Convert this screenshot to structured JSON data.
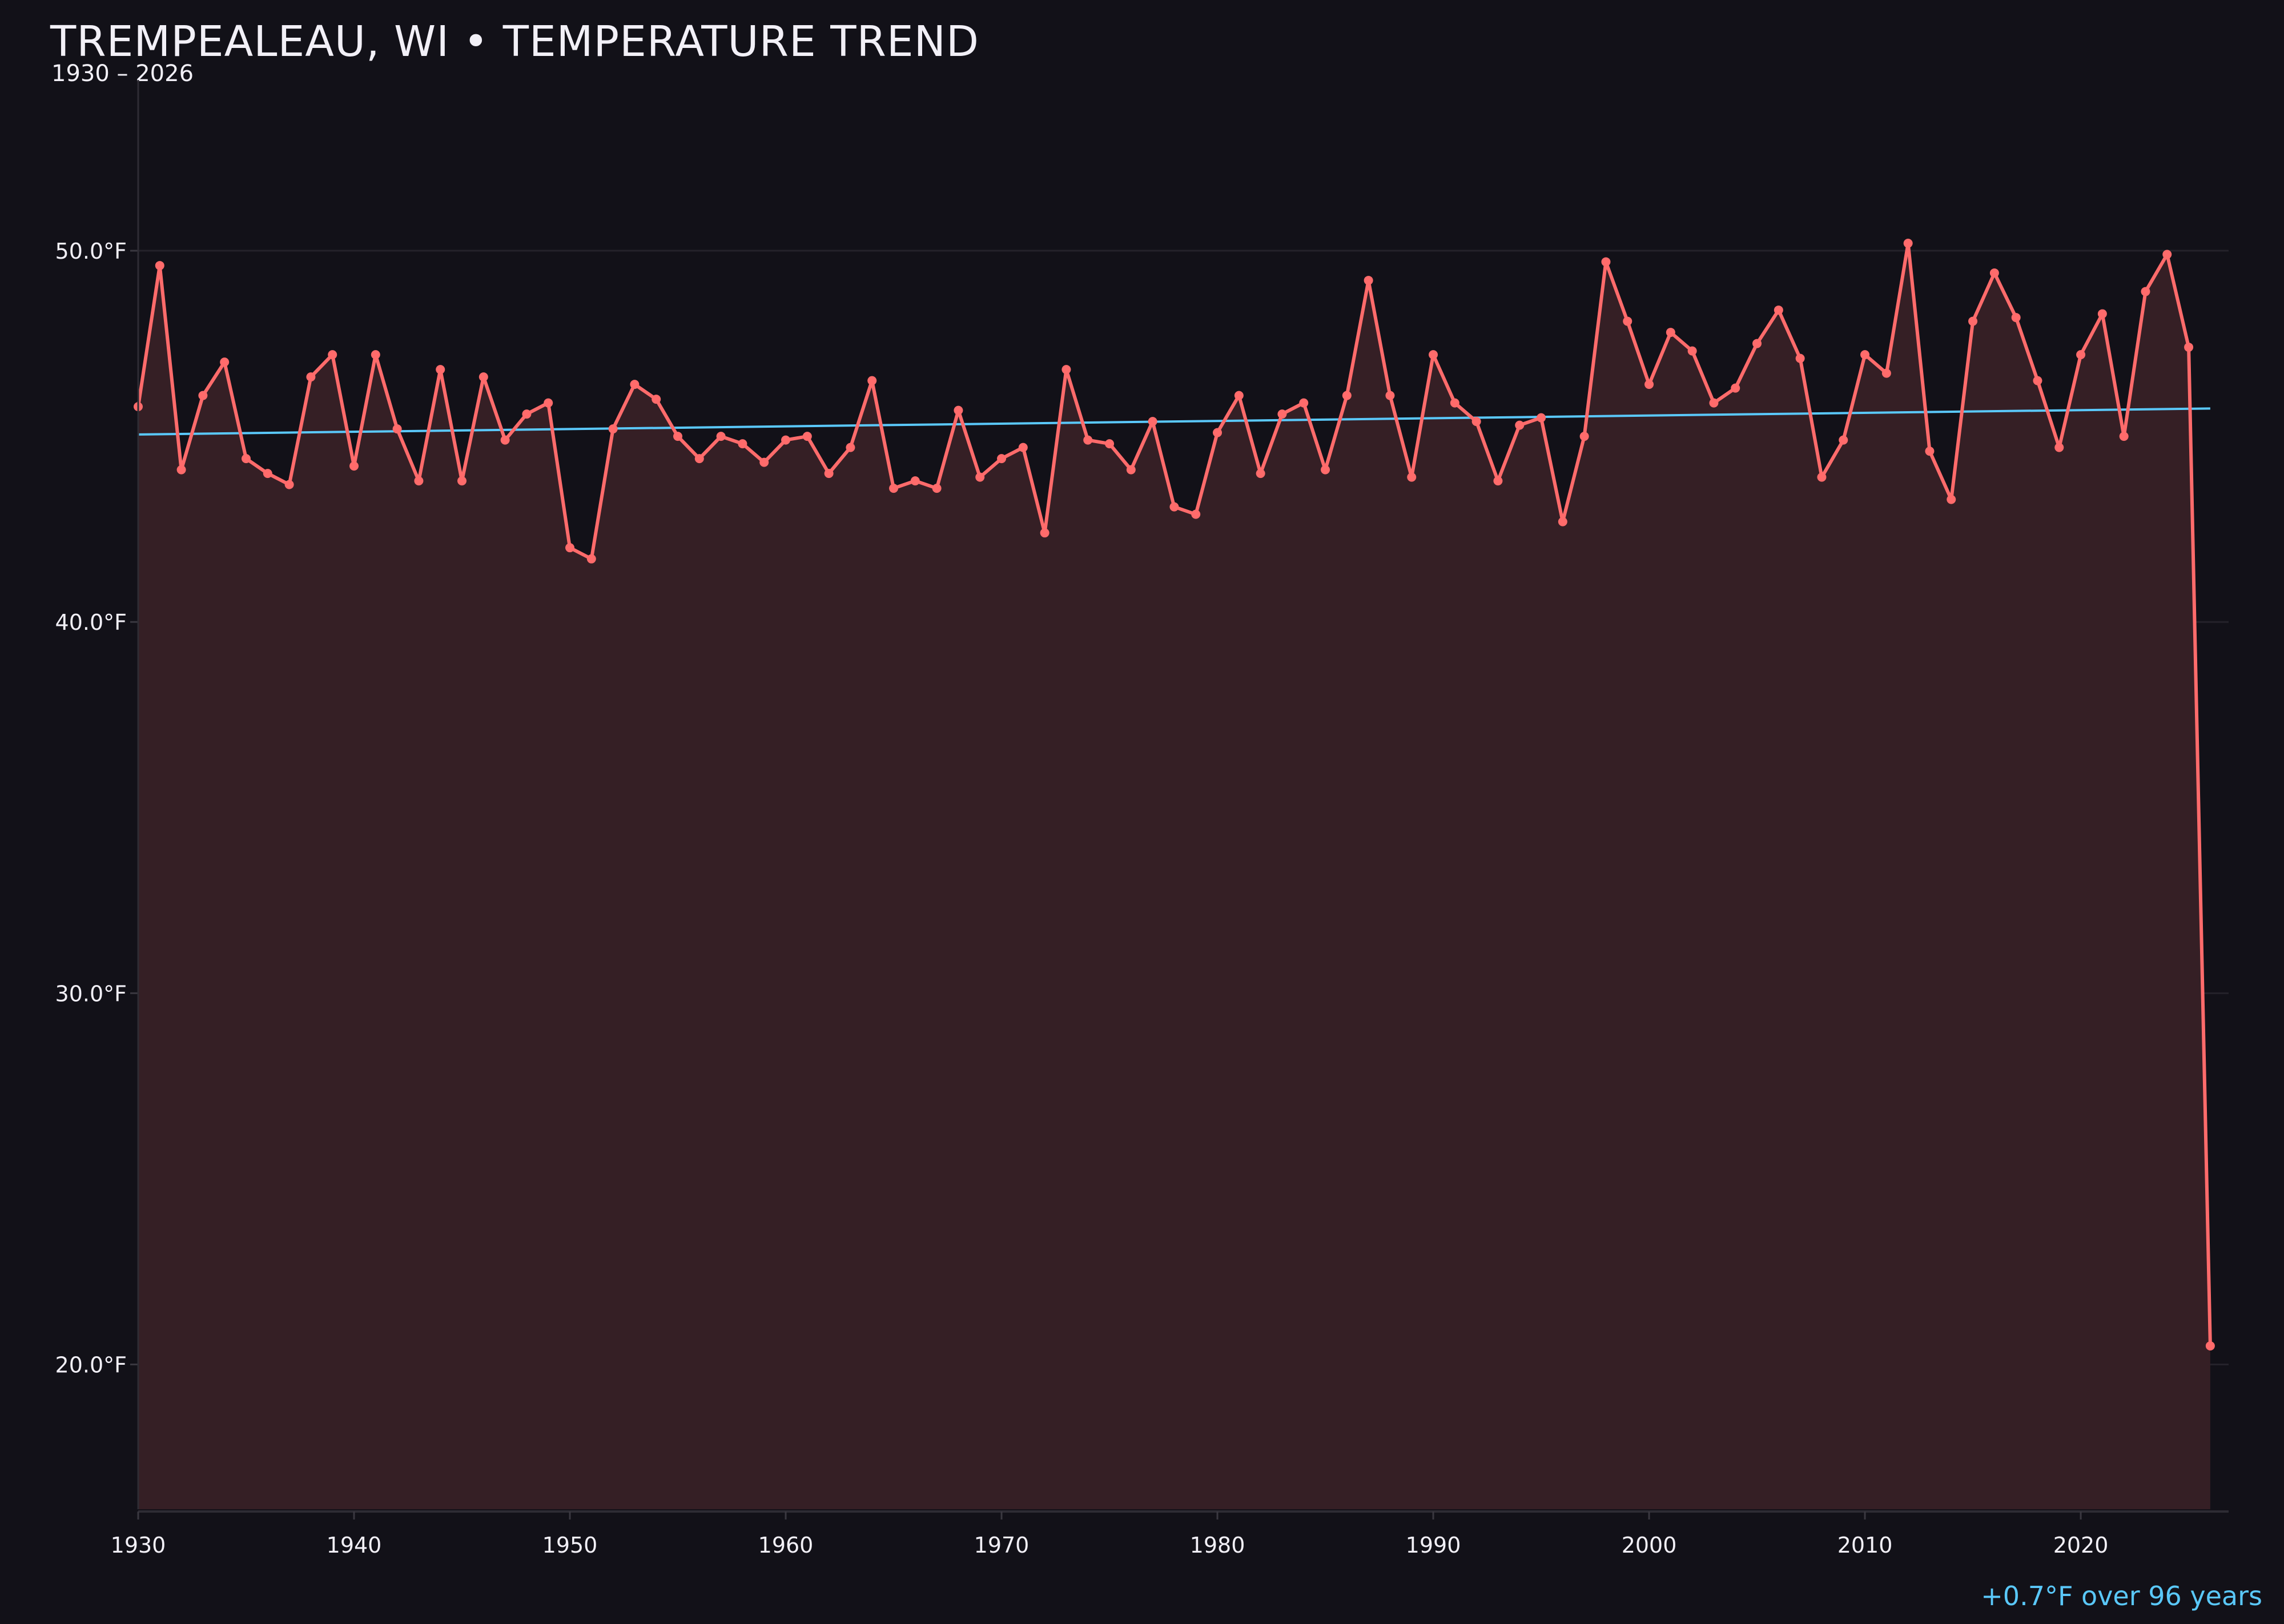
{
  "title": "TREMPEALEAU, WI • TEMPERATURE TREND",
  "subtitle": "1930 – 2026",
  "note": "+0.7°F over 96 years",
  "colors": {
    "background": "#121118",
    "series": "#ff6b6b",
    "fill": "#351f25",
    "trend": "#5ac8fa",
    "text": "#f2f0f7",
    "grid": "#24222a"
  },
  "chart_data": {
    "type": "line",
    "title": "TREMPEALEAU, WI • TEMPERATURE TREND",
    "subtitle": "1930 – 2026",
    "xlabel": "",
    "ylabel": "",
    "xlim": [
      1930,
      2026.85
    ],
    "ylim": [
      16.1,
      54.6
    ],
    "grid": true,
    "x_ticks": [
      1930,
      1940,
      1950,
      1960,
      1970,
      1980,
      1990,
      2000,
      2010,
      2020
    ],
    "x_tick_labels": [
      "1930",
      "1940",
      "1950",
      "1960",
      "1970",
      "1980",
      "1990",
      "2000",
      "2010",
      "2020"
    ],
    "y_ticks": [
      20,
      30,
      40,
      50
    ],
    "y_tick_labels": [
      "20.0°F",
      "30.0°F",
      "40.0°F",
      "50.0°F"
    ],
    "x": [
      1930,
      1931,
      1932,
      1933,
      1934,
      1935,
      1936,
      1937,
      1938,
      1939,
      1940,
      1941,
      1942,
      1943,
      1944,
      1945,
      1946,
      1947,
      1948,
      1949,
      1950,
      1951,
      1952,
      1953,
      1954,
      1955,
      1956,
      1957,
      1958,
      1959,
      1960,
      1961,
      1962,
      1963,
      1964,
      1965,
      1966,
      1967,
      1968,
      1969,
      1970,
      1971,
      1972,
      1973,
      1974,
      1975,
      1976,
      1977,
      1978,
      1979,
      1980,
      1981,
      1982,
      1983,
      1984,
      1985,
      1986,
      1987,
      1988,
      1989,
      1990,
      1991,
      1992,
      1993,
      1994,
      1995,
      1996,
      1997,
      1998,
      1999,
      2000,
      2001,
      2002,
      2003,
      2004,
      2005,
      2006,
      2007,
      2008,
      2009,
      2010,
      2011,
      2012,
      2013,
      2014,
      2015,
      2016,
      2017,
      2018,
      2019,
      2020,
      2021,
      2022,
      2023,
      2024,
      2025,
      2026
    ],
    "values": [
      45.8,
      49.6,
      44.1,
      46.1,
      47.0,
      44.4,
      44.0,
      43.7,
      46.6,
      47.2,
      44.2,
      47.2,
      45.2,
      43.8,
      46.8,
      43.8,
      46.6,
      44.9,
      45.6,
      45.9,
      42.0,
      41.7,
      45.2,
      46.4,
      46.0,
      45.0,
      44.4,
      45.0,
      44.8,
      44.3,
      44.9,
      45.0,
      44.0,
      44.7,
      46.5,
      43.6,
      43.8,
      43.6,
      45.7,
      43.9,
      44.4,
      44.7,
      42.4,
      46.8,
      44.9,
      44.8,
      44.1,
      45.4,
      43.1,
      42.9,
      45.1,
      46.1,
      44.0,
      45.6,
      45.9,
      44.1,
      46.1,
      49.2,
      46.1,
      43.9,
      47.2,
      45.9,
      45.4,
      43.8,
      45.3,
      45.5,
      42.7,
      45.0,
      49.7,
      48.1,
      46.4,
      47.8,
      47.3,
      45.9,
      46.3,
      47.5,
      48.4,
      47.1,
      43.9,
      44.9,
      47.2,
      46.7,
      50.2,
      44.6,
      43.3,
      48.1,
      49.4,
      48.2,
      46.5,
      44.7,
      47.2,
      48.3,
      45.0,
      48.9,
      49.9,
      47.4,
      20.5
    ],
    "trend": {
      "x": [
        1930,
        2026
      ],
      "y": [
        45.05,
        45.75
      ]
    }
  }
}
